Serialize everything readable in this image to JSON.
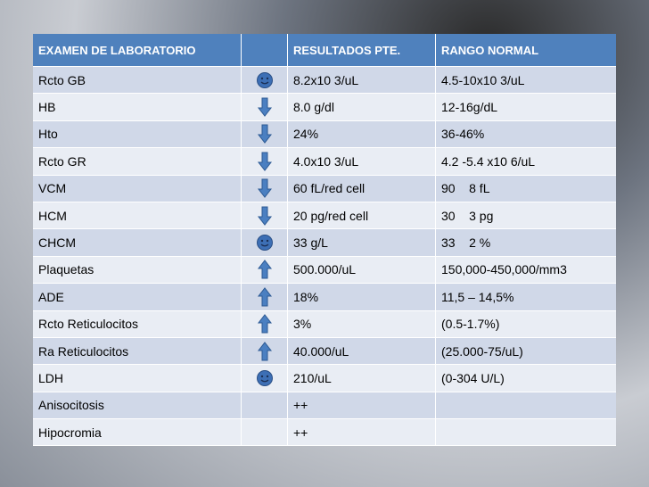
{
  "table": {
    "header": [
      "EXAMEN DE LABORATORIO",
      "RESULTADOS PTE.",
      "RANGO NORMAL"
    ],
    "rows": [
      [
        "Rcto GB",
        "8.2x10 3/uL",
        "4.5-10x10 3/uL"
      ],
      [
        "HB",
        "8.0 g/dl",
        "12-16g/dL"
      ],
      [
        "Hto",
        "24%",
        "36-46%"
      ],
      [
        "Rcto GR",
        "4.0x10 3/uL",
        "4.2 -5.4 x10 6/uL"
      ],
      [
        "VCM",
        "60 fL/red cell",
        "90    8 fL"
      ],
      [
        "HCM",
        "20 pg/red cell",
        "30    3 pg"
      ],
      [
        "CHCM",
        "33 g/L",
        "33    2 %"
      ],
      [
        "Plaquetas",
        "500.000/uL",
        "150,000-450,000/mm3"
      ],
      [
        "ADE",
        "18%",
        "11,5 – 14,5%"
      ],
      [
        "Rcto Reticulocitos",
        "3%",
        "(0.5-1.7%)"
      ],
      [
        "Ra Reticulocitos",
        "40.000/uL",
        "(25.000-75/uL)"
      ],
      [
        "LDH",
        "210/uL",
        "(0-304 U/L)"
      ],
      [
        "Anisocitosis",
        "++"
      ],
      [
        "Hipocromia",
        "++"
      ]
    ]
  }
}
